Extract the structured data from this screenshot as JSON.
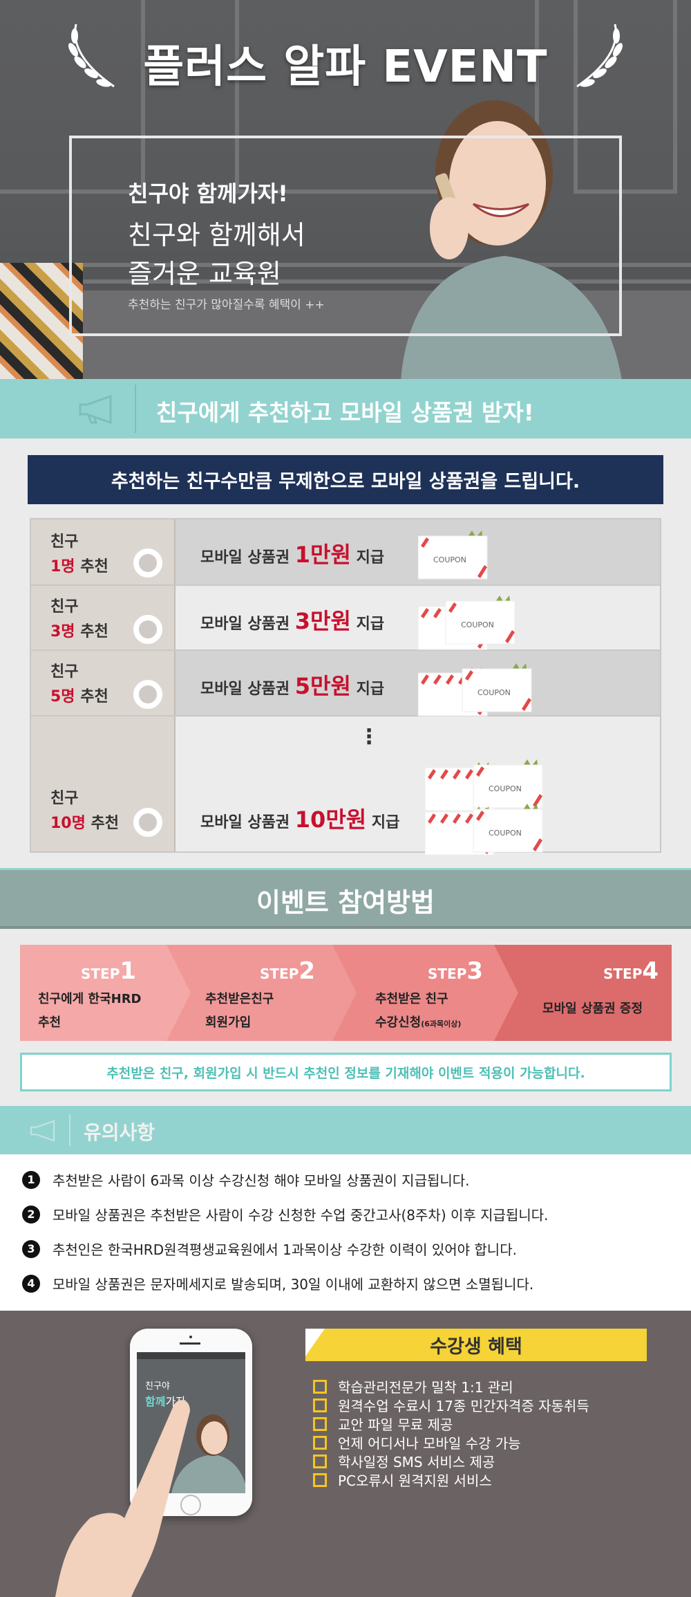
{
  "hero": {
    "title": "플러스 알파 EVENT",
    "headline": "친구야 함께가자!",
    "subline1": "친구와 함께해서",
    "subline2": "즐거운 교육원",
    "note": "추천하는 친구가 많아질수록 혜택이 ++"
  },
  "recommend": {
    "title": "친구에게 추천하고 모바일 상품권 받자!",
    "banner": "추천하는 친구수만큼 무제한으로 모바일 상품권을 드립니다.",
    "rows": [
      {
        "friend": "친구",
        "count": "1명",
        "suffix": "추천",
        "prefix_text": "모바일 상품권",
        "amount": "1만원",
        "suffix_text": "지급",
        "coupons": 1
      },
      {
        "friend": "친구",
        "count": "3명",
        "suffix": "추천",
        "prefix_text": "모바일 상품권",
        "amount": "3만원",
        "suffix_text": "지급",
        "coupons": 2
      },
      {
        "friend": "친구",
        "count": "5명",
        "suffix": "추천",
        "prefix_text": "모바일 상품권",
        "amount": "5만원",
        "suffix_text": "지급",
        "coupons": 3
      },
      {
        "friend": "친구",
        "count": "10명",
        "suffix": "추천",
        "prefix_text": "모바일 상품권",
        "amount": "10만원",
        "suffix_text": "지급",
        "coupons": 6
      }
    ],
    "ellipsis": "⋮",
    "coupon_label": "COUPON"
  },
  "howto": {
    "title": "이벤트 참여방법",
    "steps": [
      {
        "label": "STEP",
        "num": "1",
        "line1": "친구에게 한국HRD",
        "line2": "추천",
        "color": "#f4a8a8"
      },
      {
        "label": "STEP",
        "num": "2",
        "line1": "추천받은친구",
        "line2": "회원가입",
        "color": "#f09898"
      },
      {
        "label": "STEP",
        "num": "3",
        "line1": "추천받은 친구",
        "line2": "수강신청",
        "line2_small": "(6과목이상)",
        "color": "#ec8888"
      },
      {
        "label": "STEP",
        "num": "4",
        "line1": "모바일 상품권 증정",
        "color": "#dc6b6b"
      }
    ],
    "notice": "추천받은 친구, 회원가입 시 반드시 추천인 정보를 기재해야 이벤트 적용이 가능합니다."
  },
  "cautions": {
    "title": "유의사항",
    "items": [
      {
        "num": "1",
        "text": "추천받은 사람이 6과목 이상 수강신청 해야 모바일 상품권이 지급됩니다."
      },
      {
        "num": "2",
        "text": "모바일 상품권은 추천받은 사람이 수강 신청한 수업 중간고사(8주차) 이후 지급됩니다."
      },
      {
        "num": "3",
        "text": "추천인은 한국HRD원격평생교육원에서 1과목이상 수강한 이력이 있어야 합니다."
      },
      {
        "num": "4",
        "text": "모바일 상품권은 문자메세지로 발송되며, 30일 이내에 교환하지 않으면 소멸됩니다."
      }
    ]
  },
  "benefits": {
    "title": "수강생 혜택",
    "phone_line1": "친구야",
    "phone_line2a": "함께",
    "phone_line2b": "가자",
    "items": [
      "학습관리전문가 밀착 1:1 관리",
      "원격수업 수료시 17종 민간자격증 자동취득",
      "교안 파일 무료 제공",
      "언제 어디서나 모바일 수강 가능",
      "학사일정 SMS 서비스 제공",
      "PC오류시 원격지원 서비스"
    ]
  },
  "colors": {
    "teal": "#93d3cf",
    "navy": "#1e3157",
    "accent_red": "#c8102e",
    "yellow": "#f6d336",
    "brown_gray": "#6b6363"
  }
}
